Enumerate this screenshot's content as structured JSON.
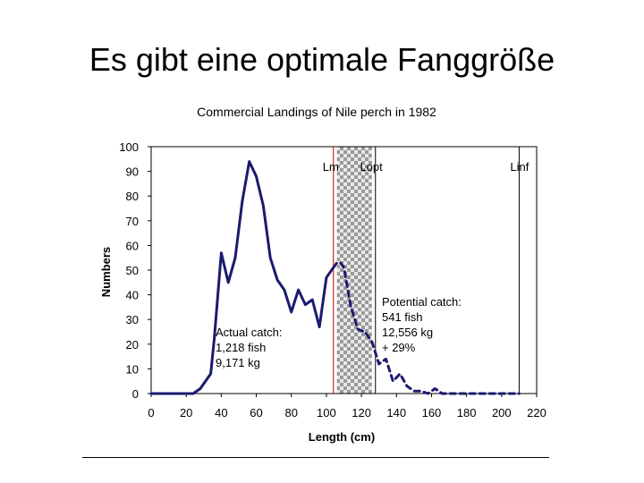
{
  "slide": {
    "title": "Es gibt eine optimale Fanggröße"
  },
  "chart_data": {
    "type": "line",
    "title": "Commercial Landings of Nile perch in 1982",
    "xlabel": "Length (cm)",
    "ylabel": "Numbers",
    "xlim": [
      0,
      220
    ],
    "ylim": [
      0,
      100
    ],
    "xticks": [
      "0",
      "20",
      "40",
      "60",
      "80",
      "100",
      "120",
      "140",
      "160",
      "180",
      "200",
      "220"
    ],
    "yticks": [
      "0",
      "10",
      "20",
      "30",
      "40",
      "50",
      "60",
      "70",
      "80",
      "90",
      "100"
    ],
    "grid": false,
    "series": [
      {
        "name": "Actual catch",
        "style": "solid",
        "color": "#1a1a6e",
        "x": [
          0,
          24,
          28,
          34,
          36,
          40,
          44,
          48,
          52,
          56,
          60,
          64,
          68,
          72,
          76,
          80,
          84,
          88,
          92,
          96,
          100,
          104
        ],
        "y": [
          0,
          0,
          2,
          8,
          22,
          57,
          45,
          55,
          78,
          94,
          88,
          76,
          55,
          46,
          42,
          33,
          42,
          36,
          38,
          27,
          47,
          51
        ]
      },
      {
        "name": "Potential catch",
        "style": "dashed",
        "color": "#1a1a6e",
        "x": [
          104,
          106,
          108,
          110,
          114,
          118,
          122,
          126,
          130,
          134,
          138,
          142,
          146,
          150,
          154,
          158,
          162,
          166,
          170,
          174,
          178,
          182,
          186,
          190,
          194,
          198,
          202,
          206,
          210
        ],
        "y": [
          51,
          53,
          53,
          51,
          35,
          26,
          25,
          21,
          12,
          14,
          5,
          8,
          3,
          1,
          1,
          0,
          2,
          0,
          0,
          0,
          0,
          0,
          0,
          0,
          0,
          0,
          0,
          0,
          0
        ]
      }
    ],
    "reference_lines": [
      {
        "label": "Lm",
        "x": 104,
        "color": "#cc0000"
      },
      {
        "label": "Lopt",
        "x": 128,
        "color": "#000000"
      },
      {
        "label": "Linf",
        "x": 210,
        "color": "#000000"
      }
    ],
    "shaded_band": {
      "x0": 106,
      "x1": 126
    },
    "annotations": {
      "actual": [
        "Actual catch:",
        "1,218 fish",
        "9,171 kg"
      ],
      "potential": [
        "Potential catch:",
        "541 fish",
        "12,556 kg",
        "+ 29%"
      ]
    }
  }
}
